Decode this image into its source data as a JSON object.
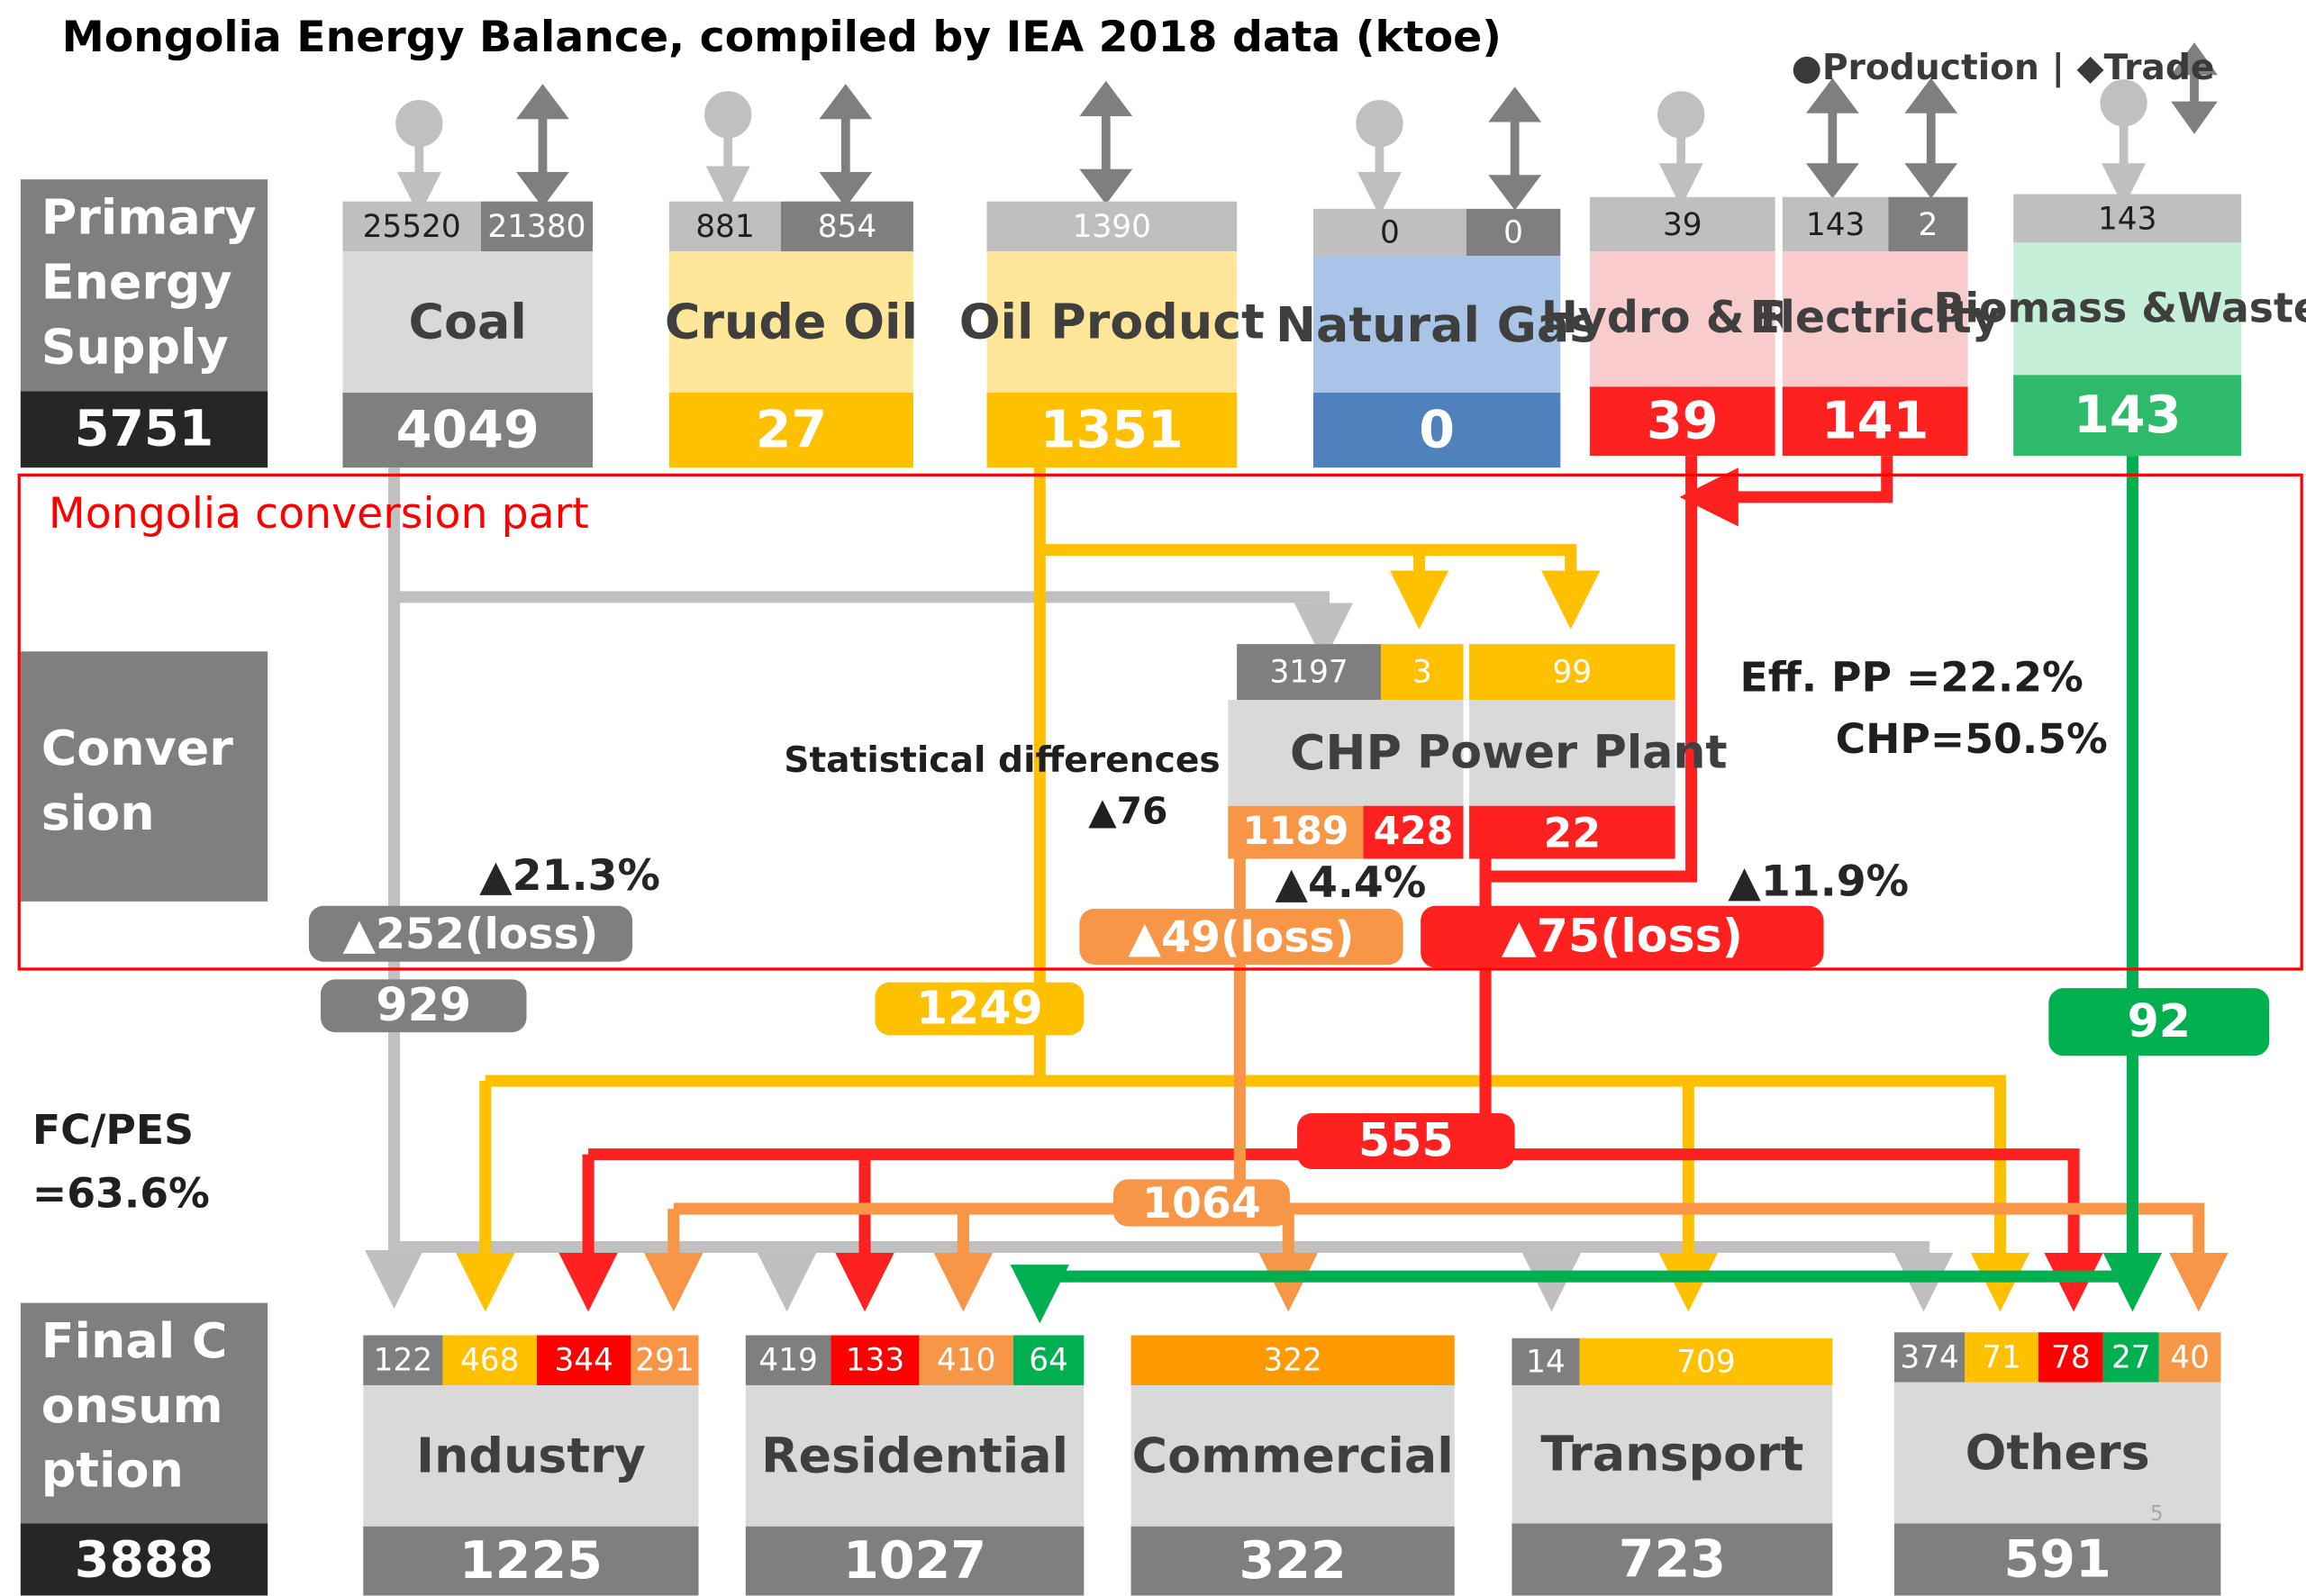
{
  "title": "Mongolia Energy Balance, compiled by IEA 2018 data (ktoe)",
  "legend": "●Production |   ◆Trade",
  "colors": {
    "coal": "#b8b8b8",
    "coal_dark": "#7f7f7f",
    "oil": "#ffc000",
    "oil_light": "#ffe699",
    "gas": "#4f81bd",
    "gas_light": "#a9c4e6",
    "elec": "#ff0000",
    "elec_light": "#f8cccc",
    "bio": "#00b050",
    "bio_light": "#c6efd9",
    "heat": "#f79646"
  },
  "icons": {
    "production": "circle-arrow-down-icon",
    "trade": "diamond-double-arrow-icon"
  },
  "primary": {
    "label": "Primary Energy Supply",
    "total": "5751",
    "sources": [
      {
        "name": "Coal",
        "production": "25520",
        "trade": "21380",
        "total": "4049"
      },
      {
        "name": "Crude Oil",
        "production": "881",
        "trade": "854",
        "total": "27"
      },
      {
        "name": "Oil Product",
        "trade": "1390",
        "total": "1351"
      },
      {
        "name": "Natural Gas",
        "production": "0",
        "trade": "0",
        "total": "0"
      },
      {
        "name": "Hydro & RE",
        "production": "39",
        "total": "39"
      },
      {
        "name": "Electricity",
        "production": "143",
        "trade": "2",
        "total": "141"
      },
      {
        "name": "Biomass &Waste",
        "production": "143",
        "total": "143"
      }
    ]
  },
  "conversion": {
    "part_label": "Mongolia conversion part",
    "label": "Conversion",
    "chp": {
      "name": "CHP",
      "coal_in": "3197",
      "oil_in": "3",
      "heat_out": "1189",
      "elec_out": "428",
      "loss_pct": "▲4.4%"
    },
    "power_plant": {
      "name": "Power Plant",
      "oil_in": "99",
      "elec_out": "22"
    },
    "efficiency_line1": "Eff.  PP =22.2%",
    "efficiency_line2": "CHP=50.5%",
    "statistical_label": "Statistical differences",
    "statistical_value": "▲76",
    "coal_loss_pct": "▲21.3%",
    "coal_loss": "▲252(loss)",
    "heat_loss": "▲49(loss)",
    "elec_loss_pct": "▲11.9%",
    "elec_loss": "▲75(loss)"
  },
  "flows": {
    "coal": "929",
    "oil": "1249",
    "elec": "555",
    "heat": "1064",
    "bio": "92"
  },
  "fc_pes": {
    "line1": "FC/PES",
    "line2": "=63.6%"
  },
  "final": {
    "label": "Final Consumption",
    "total": "3888",
    "sectors": [
      {
        "name": "Industry",
        "total": "1225",
        "coal": "122",
        "oil": "468",
        "elec": "344",
        "heat": "291"
      },
      {
        "name": "Residential",
        "total": "1027",
        "coal": "419",
        "elec": "133",
        "heat": "410",
        "bio": "64"
      },
      {
        "name": "Commercial",
        "total": "322",
        "heat": "322"
      },
      {
        "name": "Transport",
        "total": "723",
        "coal": "14",
        "oil": "709"
      },
      {
        "name": "Others",
        "total": "591",
        "coal": "374",
        "oil": "71",
        "elec": "78",
        "bio": "27",
        "heat": "40"
      }
    ]
  },
  "page_number": "5"
}
